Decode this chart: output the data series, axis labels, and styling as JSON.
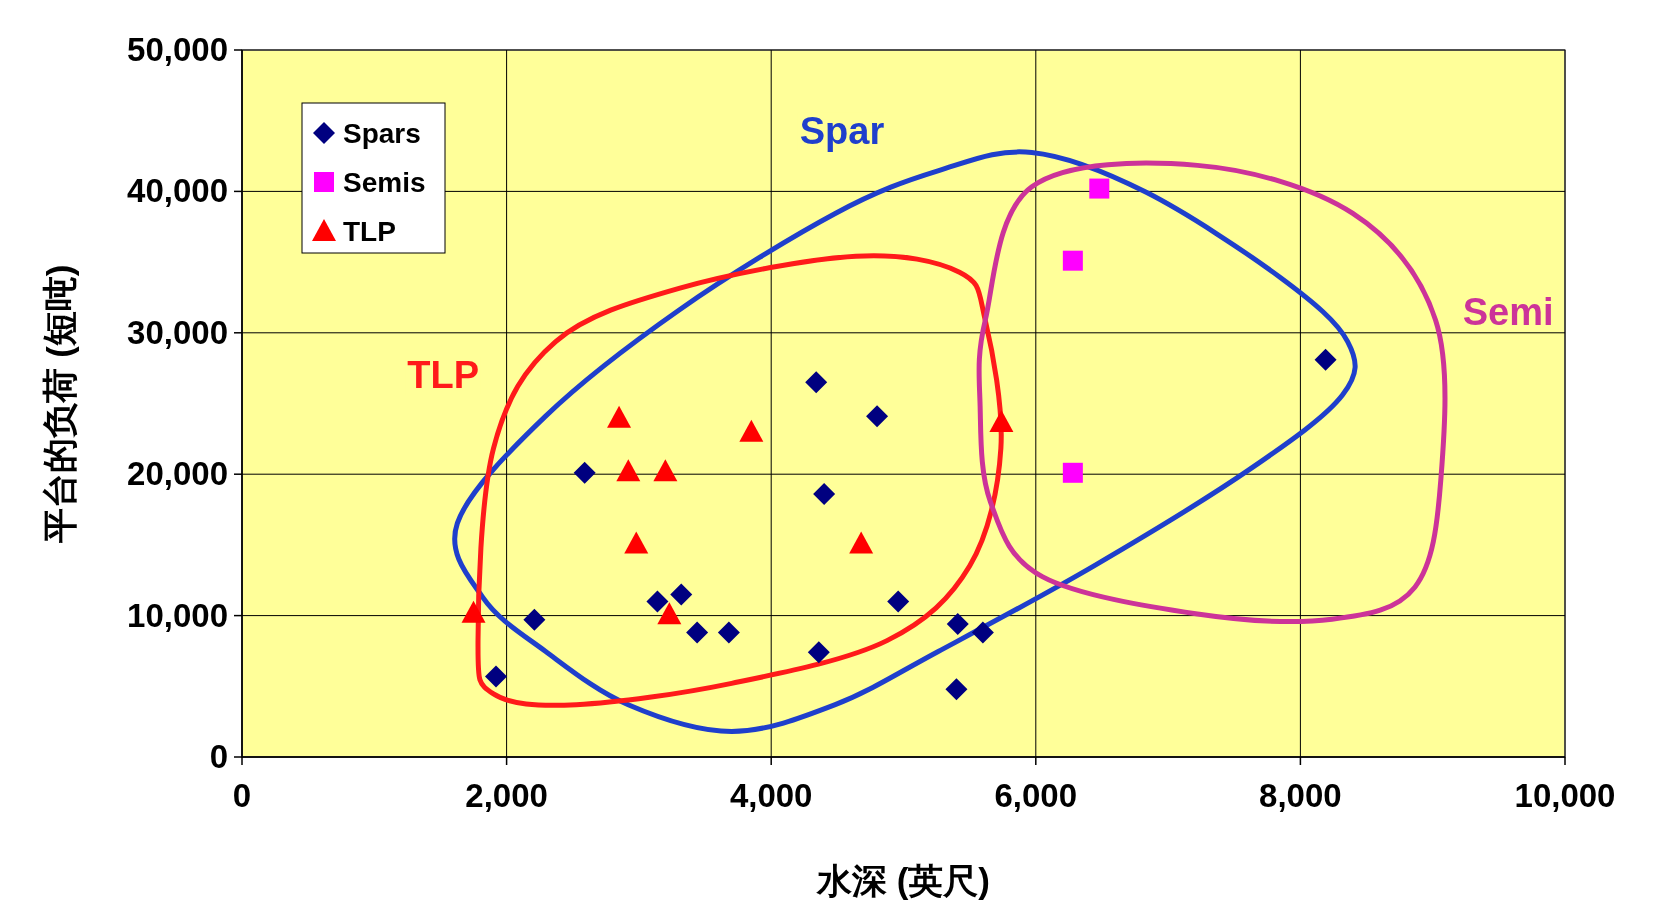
{
  "chart_data": {
    "type": "scatter",
    "xlabel": "水深 (英尺)",
    "ylabel": "平台的负荷 (短吨)",
    "xlim": [
      0,
      10000
    ],
    "ylim": [
      0,
      50000
    ],
    "xticks": [
      0,
      {
        "value": 2000,
        "label": "2,000"
      },
      {
        "value": 4000,
        "label": "4,000"
      },
      {
        "value": 6000,
        "label": "6,000"
      },
      {
        "value": 8000,
        "label": "8,000"
      },
      {
        "value": 10000,
        "label": "10,000"
      }
    ],
    "yticks": [
      0,
      {
        "value": 10000,
        "label": "10,000"
      },
      {
        "value": 20000,
        "label": "20,000"
      },
      {
        "value": 30000,
        "label": "30,000"
      },
      {
        "value": 40000,
        "label": "40,000"
      },
      {
        "value": 50000,
        "label": "50,000"
      }
    ],
    "grid": true,
    "legend": "top left",
    "series": [
      {
        "name": "Spars",
        "color": "#000080",
        "marker": "diamond",
        "x": [
          1920,
          2210,
          2590,
          3140,
          3320,
          3440,
          3680,
          4340,
          4400,
          4360,
          4800,
          4960,
          5410,
          5600,
          5400,
          8190
        ],
        "values": [
          5700,
          9700,
          20100,
          11000,
          11500,
          8800,
          8800,
          26500,
          18600,
          7400,
          24100,
          11000,
          9400,
          8800,
          4800,
          28100
        ]
      },
      {
        "name": "Semis",
        "color": "#ff00ff",
        "marker": "square",
        "x": [
          6480,
          6280,
          6280
        ],
        "values": [
          40200,
          35100,
          20100
        ]
      },
      {
        "name": "TLP",
        "color": "#ff0000",
        "marker": "triangle",
        "x": [
          1750,
          2850,
          2920,
          2980,
          3200,
          3230,
          3850,
          4680,
          5740
        ],
        "values": [
          10200,
          24000,
          20200,
          15100,
          20200,
          10100,
          23000,
          15100,
          23700
        ]
      }
    ],
    "annotations": [
      "Spar",
      "TLP",
      "Semi"
    ]
  }
}
